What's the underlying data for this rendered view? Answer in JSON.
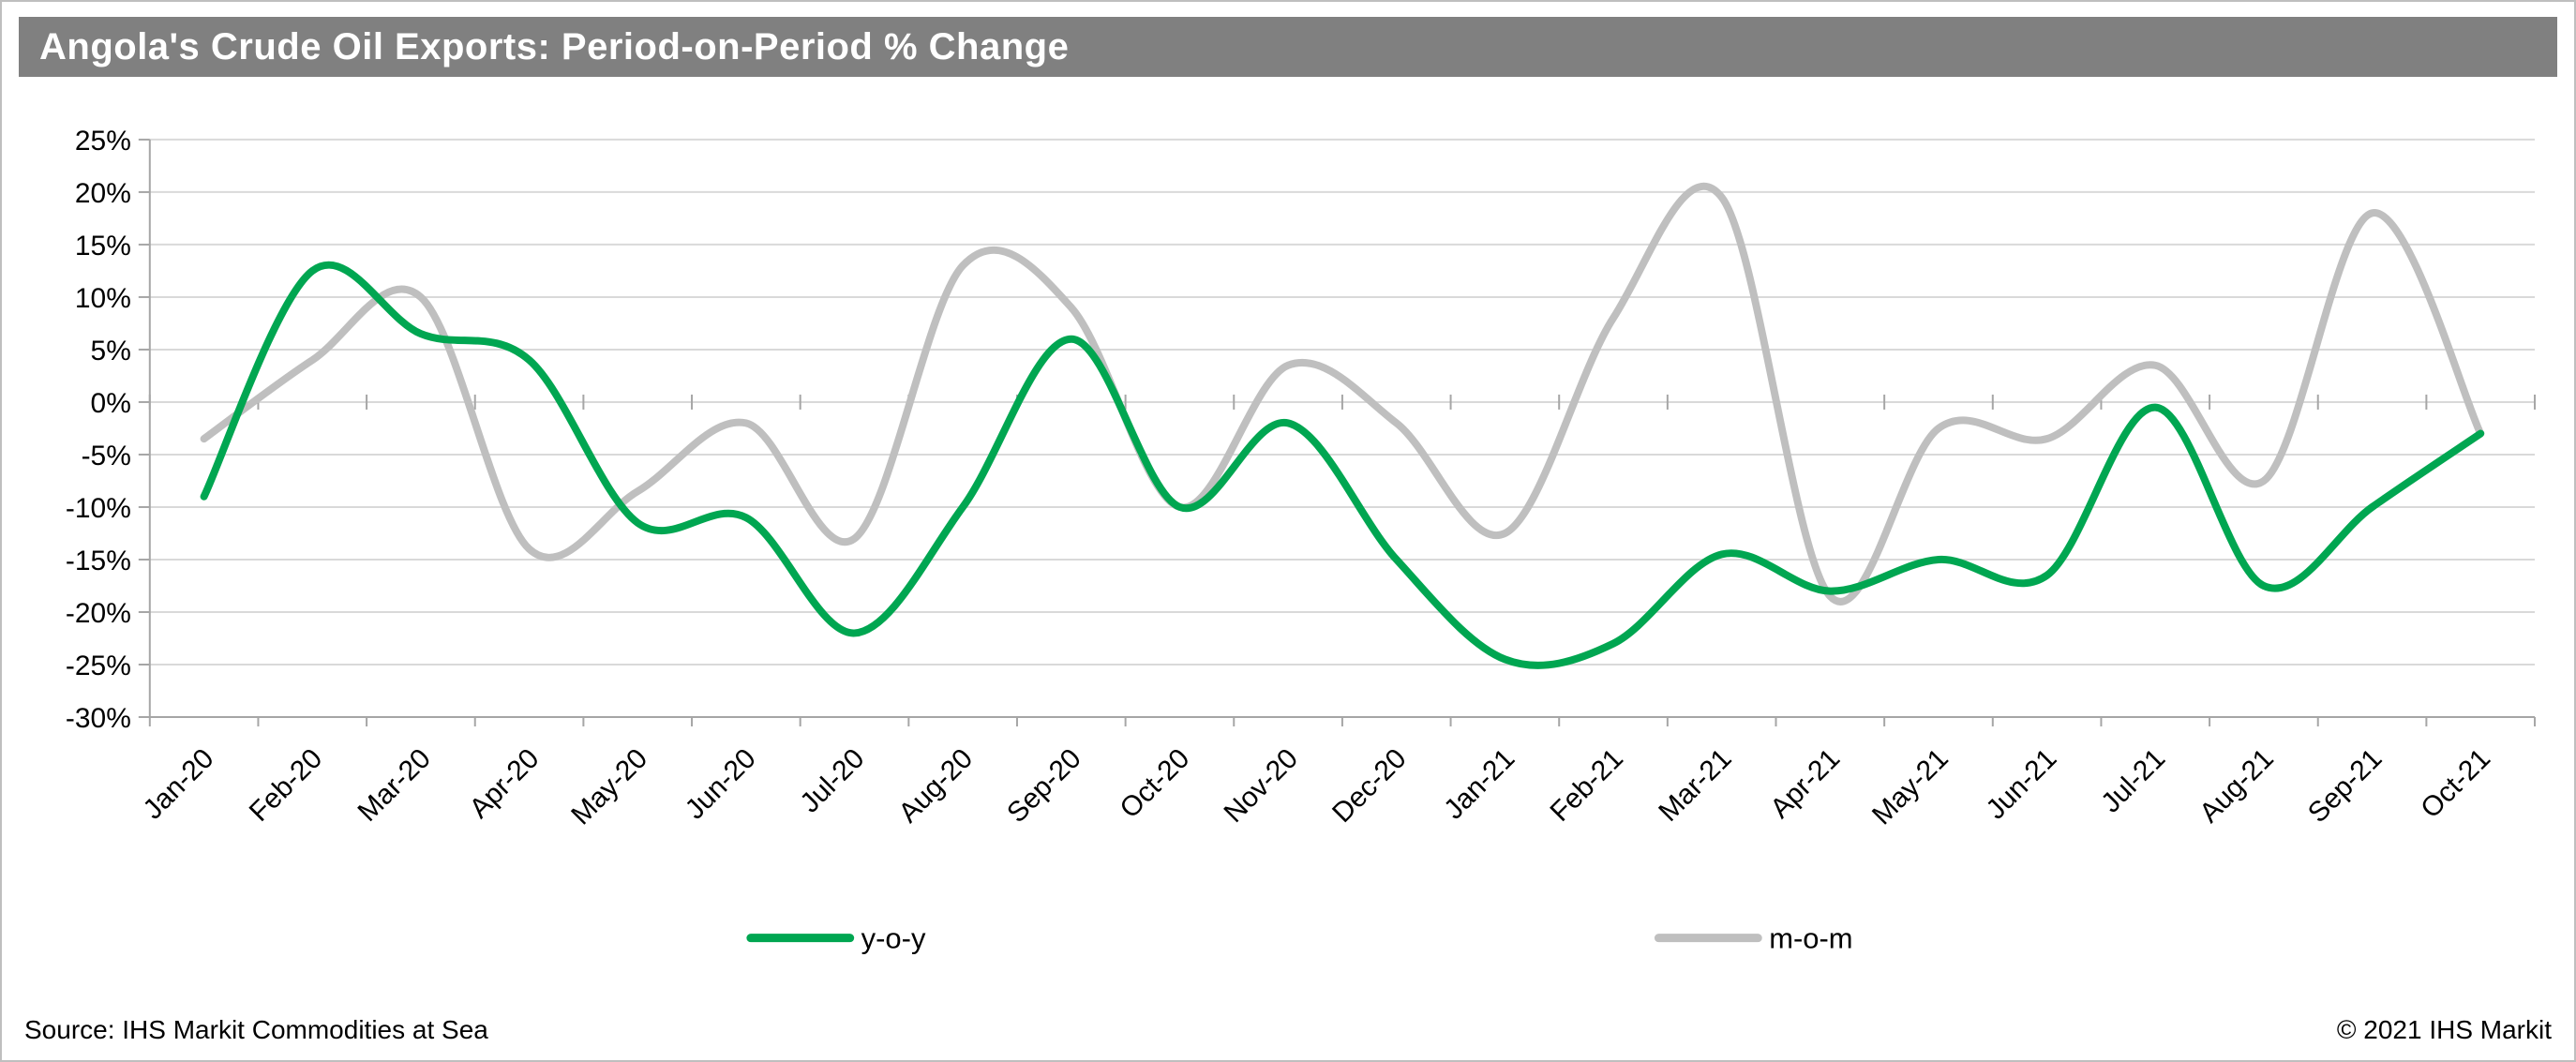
{
  "title": "Angola's Crude Oil Exports: Period-on-Period % Change",
  "footer": {
    "source": "Source: IHS Markit Commodities at Sea",
    "copyright": "© 2021 IHS Markit"
  },
  "colors": {
    "title_bar": "#808080",
    "grid": "#d9d9d9",
    "axis": "#a6a6a6",
    "yoy": "#00a651",
    "mom": "#bfbfbf"
  },
  "chart_data": {
    "type": "line",
    "smooth": true,
    "title": "Angola's Crude Oil Exports: Period-on-Period % Change",
    "xlabel": "",
    "ylabel": "",
    "ylim": [
      -30,
      25
    ],
    "ytick_step": 5,
    "ytick_format": "percent",
    "grid": true,
    "legend_position": "bottom",
    "categories": [
      "Jan-20",
      "Feb-20",
      "Mar-20",
      "Apr-20",
      "May-20",
      "Jun-20",
      "Jul-20",
      "Aug-20",
      "Sep-20",
      "Oct-20",
      "Nov-20",
      "Dec-20",
      "Jan-21",
      "Feb-21",
      "Mar-21",
      "Apr-21",
      "May-21",
      "Jun-21",
      "Jul-21",
      "Aug-21",
      "Sep-21",
      "Oct-21"
    ],
    "series": [
      {
        "name": "y-o-y",
        "color_key": "yoy",
        "values": [
          -9,
          12.5,
          6.5,
          4,
          -11.5,
          -11,
          -22,
          -10,
          6,
          -10,
          -2,
          -15,
          -24.5,
          -23,
          -14.5,
          -18,
          -15,
          -16.5,
          -0.5,
          -17.5,
          -10,
          -3
        ]
      },
      {
        "name": "m-o-m",
        "color_key": "mom",
        "values": [
          -3.5,
          4,
          10,
          -14,
          -8.5,
          -2,
          -13,
          13,
          9,
          -10,
          3.5,
          -2,
          -12.5,
          8,
          19.5,
          -18.5,
          -2.5,
          -3.5,
          3.5,
          -7.5,
          18,
          -3
        ]
      }
    ]
  }
}
